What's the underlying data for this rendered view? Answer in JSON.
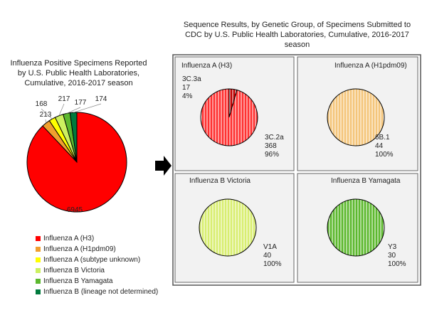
{
  "panel_title": "Sequence Results, by Genetic Group, of Specimens Submitted to CDC by U.S. Public Health Laboratories, Cumulative, 2016-2017 season",
  "chart_data": [
    {
      "type": "pie",
      "title": "Influenza Positive Specimens Reported by U.S. Public Health Laboratories, Cumulative, 2016-2017 season",
      "categories": [
        "Influenza A (H3)",
        "Influenza A (H1pdm09)",
        "Influenza A (subtype unknown)",
        "Influenza B Victoria",
        "Influenza B Yamagata",
        "Influenza B (lineage not determined)"
      ],
      "values": [
        6945,
        213,
        168,
        217,
        177,
        174
      ],
      "colors": [
        "#ff0000",
        "#f0a030",
        "#ffff00",
        "#ccf060",
        "#5cb82e",
        "#007a3d"
      ],
      "legend": "bottom"
    },
    {
      "type": "pie",
      "title": "Influenza A (H3)",
      "categories": [
        "3C.3a",
        "3C.2a"
      ],
      "values": [
        17,
        368
      ],
      "percent_labels": [
        "4%",
        "96%"
      ],
      "colors": [
        "#c00000",
        "#ff3030"
      ],
      "fill_style": "striped"
    },
    {
      "type": "pie",
      "title": "Influenza A (H1pdm09)",
      "categories": [
        "6B.1"
      ],
      "values": [
        44
      ],
      "percent_labels": [
        "100%"
      ],
      "colors": [
        "#f4c57a"
      ],
      "fill_style": "striped"
    },
    {
      "type": "pie",
      "title": "Influenza B Victoria",
      "categories": [
        "V1A"
      ],
      "values": [
        40
      ],
      "percent_labels": [
        "100%"
      ],
      "colors": [
        "#d8ee70"
      ],
      "fill_style": "striped"
    },
    {
      "type": "pie",
      "title": "Influenza B Yamagata",
      "categories": [
        "Y3"
      ],
      "values": [
        30
      ],
      "percent_labels": [
        "100%"
      ],
      "colors": [
        "#5cb82e"
      ],
      "fill_style": "striped"
    }
  ]
}
